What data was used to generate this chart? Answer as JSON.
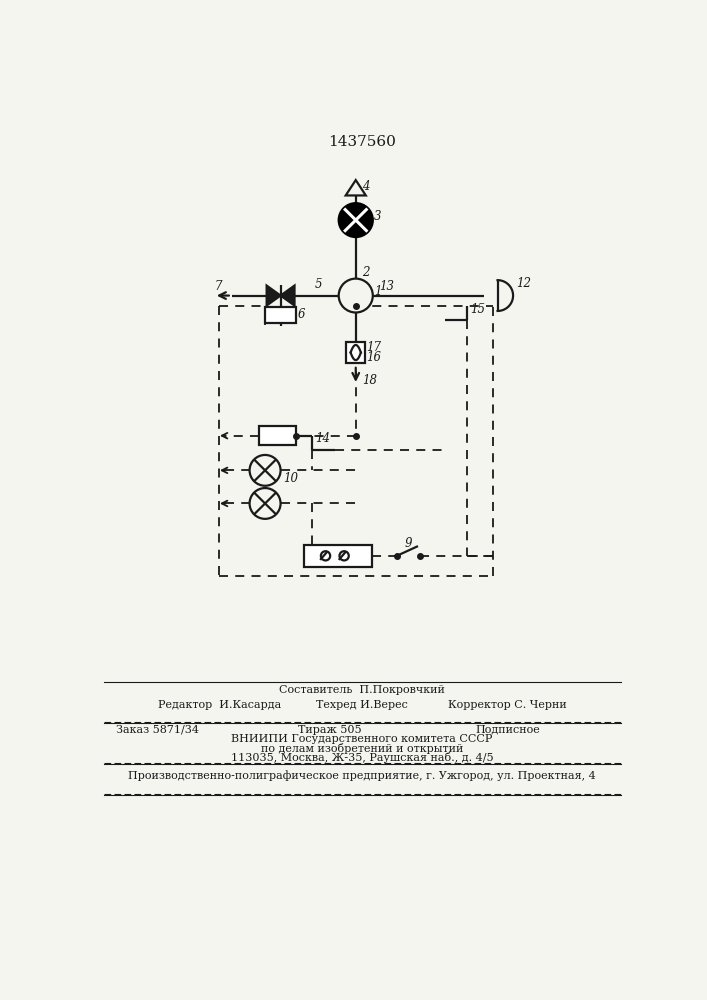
{
  "title": "1437560",
  "bg_color": "#f5f5f0",
  "line_color": "#1a1a1a",
  "footer": {
    "sestavitel": "Составитель  П.Покровчкий",
    "redaktor": "Редактор  И.Касарда",
    "tehred": "Техред И.Верес",
    "korrektor": "Корректор С. Черни",
    "zakaz": "Заказ 5871/34",
    "tirazh": "Тираж 505",
    "podpisnoe": "Подписное",
    "vniip1": "ВНИИПИ Государственного комитета СССР",
    "vniip2": "по делам изобретений и открытий",
    "addr": "113035, Москва, Ж-35, Раушская наб., д. 4/5",
    "predpr": "Производственно-полиграфическое предприятие, г. Ужгород, ул. Проектная, 4"
  }
}
